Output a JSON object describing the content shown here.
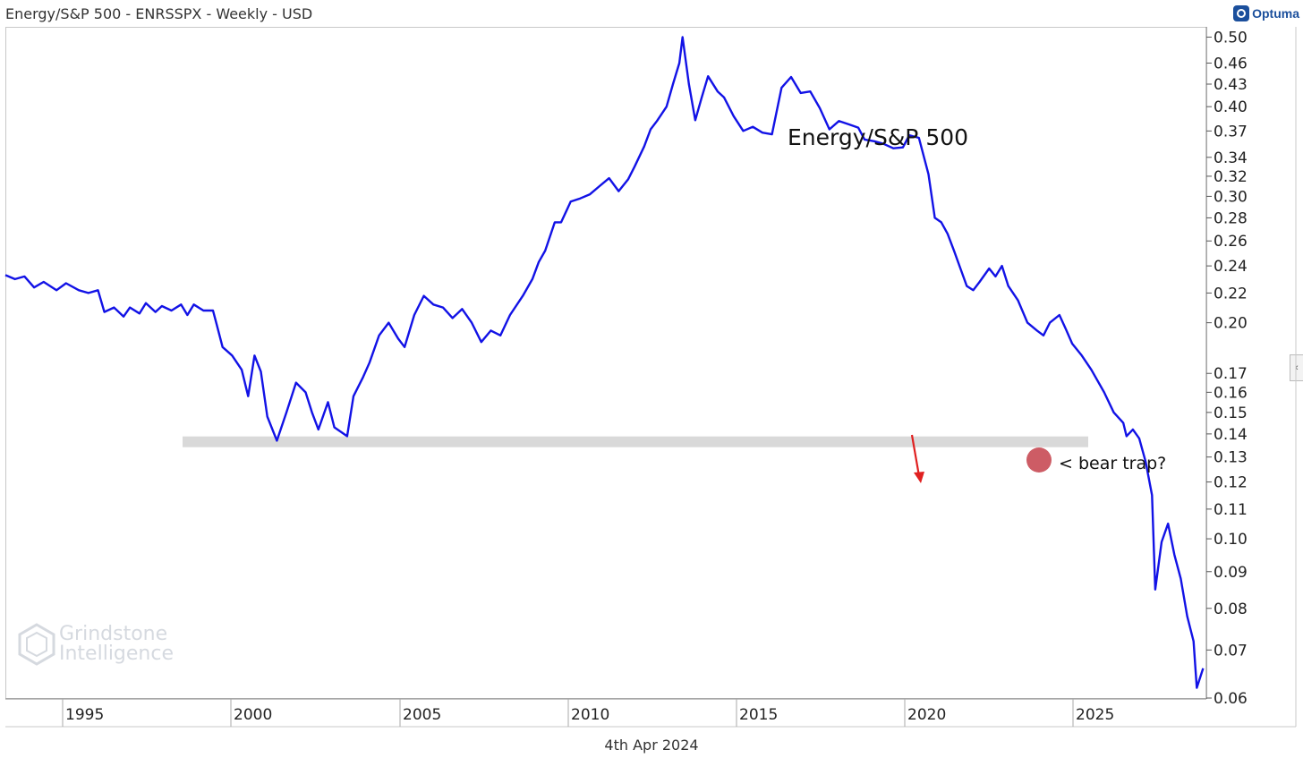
{
  "header": {
    "title": "Energy/S&P 500 - ENRSSPX - Weekly - USD"
  },
  "brand": {
    "name": "Optuma",
    "icon": "optuma-logo-icon"
  },
  "footer": {
    "date": "4th Apr 2024"
  },
  "watermark": {
    "line1": "Grindstone",
    "line2": "Intelligence",
    "icon": "hexagon-logo-icon"
  },
  "side_tab": {
    "glyph": "‹"
  },
  "colors": {
    "series": "#1212e6",
    "support_band": "#d9d9d9",
    "arrow": "#e02020",
    "marker": "#c0333e"
  },
  "chart_data": {
    "type": "line",
    "title": "Energy/S&P 500",
    "xlabel": "",
    "ylabel": "",
    "y_scale": "log",
    "xlim": [
      1993.4,
      2031.0
    ],
    "ylim": [
      0.06,
      0.505
    ],
    "grid": false,
    "x_ticks": [
      1995,
      2000,
      2005,
      2010,
      2015,
      2020,
      2025
    ],
    "y_ticks": [
      {
        "v": 0.5,
        "label": "0.50"
      },
      {
        "v": 0.46,
        "label": "0.46"
      },
      {
        "v": 0.43,
        "label": "0.43"
      },
      {
        "v": 0.4,
        "label": "0.40"
      },
      {
        "v": 0.37,
        "label": "0.37"
      },
      {
        "v": 0.34,
        "label": "0.34"
      },
      {
        "v": 0.32,
        "label": "0.32"
      },
      {
        "v": 0.3,
        "label": "0.30"
      },
      {
        "v": 0.28,
        "label": "0.28"
      },
      {
        "v": 0.26,
        "label": "0.26"
      },
      {
        "v": 0.24,
        "label": "0.24"
      },
      {
        "v": 0.22,
        "label": "0.22"
      },
      {
        "v": 0.2,
        "label": "0.20"
      },
      {
        "v": 0.17,
        "label": "0.17"
      },
      {
        "v": 0.16,
        "label": "0.16"
      },
      {
        "v": 0.15,
        "label": "0.15"
      },
      {
        "v": 0.14,
        "label": "0.14"
      },
      {
        "v": 0.13,
        "label": "0.13"
      },
      {
        "v": 0.12,
        "label": "0.12"
      },
      {
        "v": 0.11,
        "label": "0.11"
      },
      {
        "v": 0.1,
        "label": "0.10"
      },
      {
        "v": 0.09,
        "label": "0.09"
      },
      {
        "v": 0.08,
        "label": "0.08"
      },
      {
        "v": 0.07,
        "label": "0.07"
      },
      {
        "v": 0.06,
        "label": "0.06"
      }
    ],
    "series": [
      {
        "values": [
          [
            1993.4,
            0.233
          ],
          [
            1993.7,
            0.23
          ],
          [
            1994.0,
            0.232
          ],
          [
            1994.3,
            0.224
          ],
          [
            1994.6,
            0.228
          ],
          [
            1995.0,
            0.222
          ],
          [
            1995.3,
            0.227
          ],
          [
            1995.7,
            0.222
          ],
          [
            1996.0,
            0.22
          ],
          [
            1996.3,
            0.222
          ],
          [
            1996.5,
            0.207
          ],
          [
            1996.8,
            0.21
          ],
          [
            1997.1,
            0.204
          ],
          [
            1997.3,
            0.21
          ],
          [
            1997.6,
            0.206
          ],
          [
            1997.8,
            0.213
          ],
          [
            1998.1,
            0.207
          ],
          [
            1998.3,
            0.211
          ],
          [
            1998.6,
            0.208
          ],
          [
            1998.9,
            0.212
          ],
          [
            1999.1,
            0.205
          ],
          [
            1999.3,
            0.212
          ],
          [
            1999.6,
            0.208
          ],
          [
            1999.9,
            0.208
          ],
          [
            2000.0,
            0.2
          ],
          [
            2000.2,
            0.185
          ],
          [
            2000.5,
            0.18
          ],
          [
            2000.8,
            0.172
          ],
          [
            2001.0,
            0.158
          ],
          [
            2001.2,
            0.18
          ],
          [
            2001.4,
            0.171
          ],
          [
            2001.6,
            0.148
          ],
          [
            2001.9,
            0.137
          ],
          [
            2002.2,
            0.15
          ],
          [
            2002.5,
            0.165
          ],
          [
            2002.8,
            0.16
          ],
          [
            2003.0,
            0.15
          ],
          [
            2003.2,
            0.142
          ],
          [
            2003.5,
            0.155
          ],
          [
            2003.7,
            0.143
          ],
          [
            2004.1,
            0.139
          ],
          [
            2004.3,
            0.158
          ],
          [
            2004.6,
            0.168
          ],
          [
            2004.8,
            0.176
          ],
          [
            2005.1,
            0.192
          ],
          [
            2005.4,
            0.2
          ],
          [
            2005.7,
            0.19
          ],
          [
            2005.9,
            0.185
          ],
          [
            2006.2,
            0.205
          ],
          [
            2006.5,
            0.218
          ],
          [
            2006.8,
            0.212
          ],
          [
            2007.1,
            0.21
          ],
          [
            2007.4,
            0.203
          ],
          [
            2007.7,
            0.209
          ],
          [
            2008.0,
            0.2
          ],
          [
            2008.3,
            0.188
          ],
          [
            2008.6,
            0.195
          ],
          [
            2008.9,
            0.192
          ],
          [
            2009.2,
            0.205
          ],
          [
            2009.6,
            0.218
          ],
          [
            2009.9,
            0.23
          ],
          [
            2010.1,
            0.243
          ],
          [
            2010.3,
            0.252
          ],
          [
            2010.6,
            0.276
          ],
          [
            2010.8,
            0.276
          ],
          [
            2011.1,
            0.295
          ],
          [
            2011.4,
            0.298
          ],
          [
            2011.7,
            0.302
          ],
          [
            2012.0,
            0.31
          ],
          [
            2012.3,
            0.318
          ],
          [
            2012.6,
            0.305
          ],
          [
            2012.9,
            0.317
          ],
          [
            2013.1,
            0.33
          ],
          [
            2013.4,
            0.352
          ],
          [
            2013.6,
            0.372
          ],
          [
            2013.8,
            0.382
          ],
          [
            2014.1,
            0.4
          ],
          [
            2014.3,
            0.43
          ],
          [
            2014.5,
            0.46
          ],
          [
            2014.6,
            0.5
          ],
          [
            2014.8,
            0.43
          ],
          [
            2015.0,
            0.383
          ],
          [
            2015.2,
            0.412
          ],
          [
            2015.4,
            0.441
          ],
          [
            2015.7,
            0.42
          ],
          [
            2015.9,
            0.412
          ],
          [
            2016.2,
            0.388
          ],
          [
            2016.5,
            0.37
          ],
          [
            2016.8,
            0.375
          ],
          [
            2017.1,
            0.368
          ],
          [
            2017.4,
            0.366
          ],
          [
            2017.7,
            0.425
          ],
          [
            2018.0,
            0.44
          ],
          [
            2018.3,
            0.418
          ],
          [
            2018.6,
            0.42
          ],
          [
            2018.9,
            0.398
          ],
          [
            2019.2,
            0.372
          ],
          [
            2019.5,
            0.382
          ],
          [
            2019.8,
            0.378
          ],
          [
            2020.1,
            0.374
          ],
          [
            2020.3,
            0.36
          ],
          [
            2020.6,
            0.358
          ],
          [
            2020.9,
            0.355
          ],
          [
            2021.2,
            0.35
          ],
          [
            2021.5,
            0.351
          ],
          [
            2021.7,
            0.365
          ],
          [
            2022.0,
            0.362
          ],
          [
            2022.3,
            0.322
          ],
          [
            2022.5,
            0.28
          ],
          [
            2022.7,
            0.276
          ],
          [
            2022.9,
            0.266
          ],
          [
            2023.1,
            0.252
          ],
          [
            2023.3,
            0.238
          ],
          [
            2023.5,
            0.225
          ],
          [
            2023.7,
            0.222
          ],
          [
            2023.9,
            0.228
          ],
          [
            2024.2,
            0.238
          ],
          [
            2024.4,
            0.232
          ],
          [
            2024.6,
            0.24
          ],
          [
            2024.8,
            0.225
          ],
          [
            2025.1,
            0.215
          ],
          [
            2025.4,
            0.2
          ],
          [
            2025.7,
            0.195
          ],
          [
            2025.9,
            0.192
          ],
          [
            2026.1,
            0.2
          ],
          [
            2026.4,
            0.205
          ],
          [
            2026.6,
            0.196
          ],
          [
            2026.8,
            0.187
          ],
          [
            2027.1,
            0.18
          ],
          [
            2027.4,
            0.172
          ],
          [
            2027.8,
            0.16
          ],
          [
            2028.1,
            0.15
          ],
          [
            2028.4,
            0.145
          ],
          [
            2028.5,
            0.139
          ],
          [
            2028.7,
            0.142
          ],
          [
            2028.9,
            0.138
          ],
          [
            2029.1,
            0.128
          ],
          [
            2029.3,
            0.115
          ],
          [
            2029.4,
            0.085
          ],
          [
            2029.6,
            0.099
          ],
          [
            2029.8,
            0.105
          ],
          [
            2030.0,
            0.095
          ],
          [
            2030.2,
            0.088
          ],
          [
            2030.4,
            0.078
          ],
          [
            2030.6,
            0.072
          ],
          [
            2030.7,
            0.062
          ],
          [
            2030.9,
            0.066
          ]
        ]
      }
    ],
    "support_level": 0.1365,
    "annotations": [
      {
        "text": "Energy/S&P 500",
        "role": "label"
      },
      {
        "text": "< bear trap?",
        "role": "callout"
      }
    ]
  }
}
